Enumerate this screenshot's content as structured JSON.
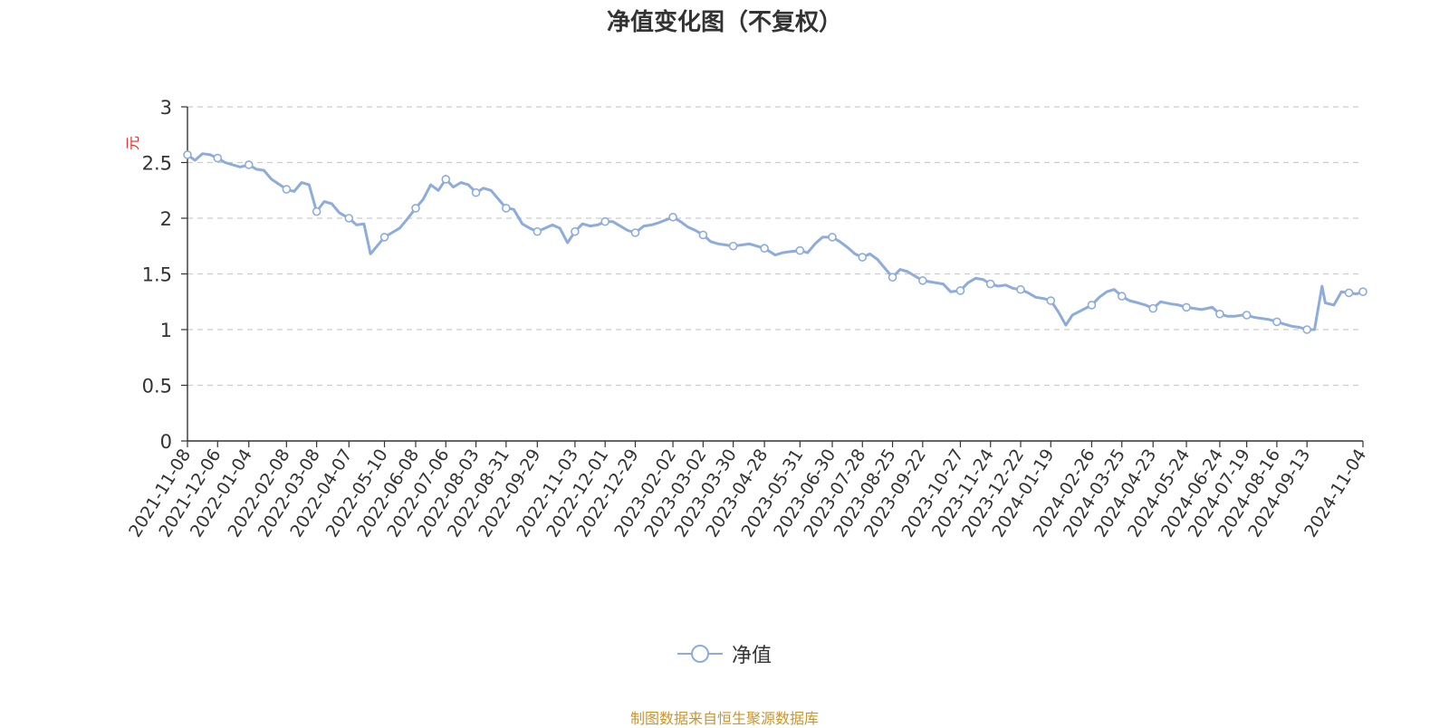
{
  "chart_data": {
    "type": "line",
    "title": "净值变化图（不复权）",
    "ylabel": "元",
    "xlabel": "",
    "ylim": [
      0,
      3
    ],
    "yticks": [
      0,
      0.5,
      1,
      1.5,
      2,
      2.5,
      3
    ],
    "ytick_labels": [
      "0",
      "0.5",
      "1",
      "1.5",
      "2",
      "2.5",
      "3"
    ],
    "grid": true,
    "legend_position": "bottom",
    "x_tick_labels": [
      "2021-11-08",
      "2021-12-06",
      "2022-01-04",
      "2022-02-08",
      "2022-03-08",
      "2022-04-07",
      "2022-05-10",
      "2022-06-08",
      "2022-07-06",
      "2022-08-03",
      "2022-08-31",
      "2022-09-29",
      "2022-11-03",
      "2022-12-01",
      "2022-12-29",
      "2023-02-02",
      "2023-03-02",
      "2023-03-30",
      "2023-04-28",
      "2023-05-31",
      "2023-06-30",
      "2023-07-28",
      "2023-08-25",
      "2023-09-22",
      "2023-10-27",
      "2023-11-24",
      "2023-12-22",
      "2024-01-19",
      "2024-02-26",
      "2024-03-25",
      "2024-04-23",
      "2024-05-24",
      "2024-06-24",
      "2024-07-19",
      "2024-08-16",
      "2024-09-13",
      "2024-11-04"
    ],
    "series": [
      {
        "name": "净值",
        "color": "#8eacdb",
        "x": [
          "2021-11-08",
          "2021-11-15",
          "2021-11-22",
          "2021-11-29",
          "2021-12-06",
          "2021-12-13",
          "2021-12-20",
          "2021-12-27",
          "2022-01-04",
          "2022-01-11",
          "2022-01-18",
          "2022-01-25",
          "2022-02-08",
          "2022-02-15",
          "2022-02-22",
          "2022-03-01",
          "2022-03-08",
          "2022-03-15",
          "2022-03-22",
          "2022-03-29",
          "2022-04-07",
          "2022-04-14",
          "2022-04-21",
          "2022-04-27",
          "2022-05-10",
          "2022-05-17",
          "2022-05-24",
          "2022-05-31",
          "2022-06-08",
          "2022-06-15",
          "2022-06-22",
          "2022-06-29",
          "2022-07-06",
          "2022-07-13",
          "2022-07-20",
          "2022-07-27",
          "2022-08-03",
          "2022-08-10",
          "2022-08-17",
          "2022-08-24",
          "2022-08-31",
          "2022-09-07",
          "2022-09-15",
          "2022-09-22",
          "2022-09-29",
          "2022-10-13",
          "2022-10-20",
          "2022-10-27",
          "2022-11-03",
          "2022-11-10",
          "2022-11-17",
          "2022-11-24",
          "2022-12-01",
          "2022-12-08",
          "2022-12-15",
          "2022-12-22",
          "2022-12-29",
          "2023-01-06",
          "2023-01-13",
          "2023-01-20",
          "2023-02-02",
          "2023-02-09",
          "2023-02-16",
          "2023-02-23",
          "2023-03-02",
          "2023-03-09",
          "2023-03-16",
          "2023-03-23",
          "2023-03-30",
          "2023-04-07",
          "2023-04-14",
          "2023-04-21",
          "2023-04-28",
          "2023-05-08",
          "2023-05-15",
          "2023-05-22",
          "2023-05-31",
          "2023-06-07",
          "2023-06-14",
          "2023-06-21",
          "2023-06-30",
          "2023-07-07",
          "2023-07-14",
          "2023-07-21",
          "2023-07-28",
          "2023-08-04",
          "2023-08-11",
          "2023-08-18",
          "2023-08-25",
          "2023-09-01",
          "2023-09-08",
          "2023-09-15",
          "2023-09-22",
          "2023-10-11",
          "2023-10-18",
          "2023-10-27",
          "2023-11-03",
          "2023-11-10",
          "2023-11-17",
          "2023-11-24",
          "2023-12-01",
          "2023-12-08",
          "2023-12-15",
          "2023-12-22",
          "2023-12-29",
          "2024-01-05",
          "2024-01-12",
          "2024-01-19",
          "2024-01-26",
          "2024-02-02",
          "2024-02-08",
          "2024-02-26",
          "2024-03-04",
          "2024-03-11",
          "2024-03-18",
          "2024-03-25",
          "2024-04-01",
          "2024-04-09",
          "2024-04-16",
          "2024-04-23",
          "2024-04-30",
          "2024-05-10",
          "2024-05-17",
          "2024-05-24",
          "2024-05-31",
          "2024-06-07",
          "2024-06-17",
          "2024-06-24",
          "2024-07-01",
          "2024-07-08",
          "2024-07-15",
          "2024-07-19",
          "2024-07-26",
          "2024-08-02",
          "2024-08-09",
          "2024-08-16",
          "2024-08-23",
          "2024-08-30",
          "2024-09-06",
          "2024-09-13",
          "2024-09-20",
          "2024-09-27",
          "2024-09-30",
          "2024-10-08",
          "2024-10-15",
          "2024-10-22",
          "2024-10-29",
          "2024-11-04"
        ],
        "values": [
          2.57,
          2.52,
          2.58,
          2.57,
          2.54,
          2.5,
          2.48,
          2.46,
          2.48,
          2.44,
          2.43,
          2.35,
          2.26,
          2.24,
          2.32,
          2.3,
          2.06,
          2.15,
          2.13,
          2.05,
          2.0,
          1.94,
          1.95,
          1.68,
          1.83,
          1.87,
          1.91,
          1.99,
          2.09,
          2.17,
          2.3,
          2.25,
          2.35,
          2.28,
          2.32,
          2.3,
          2.23,
          2.27,
          2.25,
          2.17,
          2.09,
          2.08,
          1.95,
          1.91,
          1.88,
          1.94,
          1.91,
          1.78,
          1.88,
          1.95,
          1.93,
          1.94,
          1.97,
          1.97,
          1.93,
          1.89,
          1.87,
          1.93,
          1.94,
          1.96,
          2.01,
          1.97,
          1.92,
          1.89,
          1.85,
          1.79,
          1.77,
          1.76,
          1.75,
          1.76,
          1.77,
          1.75,
          1.73,
          1.67,
          1.69,
          1.7,
          1.71,
          1.69,
          1.77,
          1.83,
          1.83,
          1.79,
          1.74,
          1.68,
          1.65,
          1.68,
          1.63,
          1.55,
          1.47,
          1.54,
          1.52,
          1.48,
          1.44,
          1.41,
          1.34,
          1.35,
          1.42,
          1.46,
          1.45,
          1.41,
          1.39,
          1.4,
          1.37,
          1.36,
          1.33,
          1.29,
          1.28,
          1.26,
          1.16,
          1.04,
          1.13,
          1.22,
          1.29,
          1.34,
          1.36,
          1.3,
          1.26,
          1.24,
          1.22,
          1.19,
          1.25,
          1.23,
          1.22,
          1.2,
          1.19,
          1.18,
          1.2,
          1.14,
          1.12,
          1.12,
          1.13,
          1.13,
          1.11,
          1.1,
          1.09,
          1.07,
          1.05,
          1.03,
          1.02,
          1.0,
          1.0,
          1.39,
          1.24,
          1.22,
          1.34,
          1.33,
          1.32,
          1.34
        ],
        "markers": [
          "2021-11-08",
          "2021-12-06",
          "2022-01-04",
          "2022-02-08",
          "2022-03-08",
          "2022-04-07",
          "2022-05-10",
          "2022-06-08",
          "2022-07-06",
          "2022-08-03",
          "2022-08-31",
          "2022-09-29",
          "2022-11-03",
          "2022-12-01",
          "2022-12-29",
          "2023-02-02",
          "2023-03-02",
          "2023-03-30",
          "2023-04-28",
          "2023-05-31",
          "2023-06-30",
          "2023-07-28",
          "2023-08-25",
          "2023-09-22",
          "2023-10-27",
          "2023-11-24",
          "2023-12-22",
          "2024-01-19",
          "2024-02-26",
          "2024-03-25",
          "2024-04-23",
          "2024-05-24",
          "2024-06-24",
          "2024-07-19",
          "2024-08-16",
          "2024-09-13",
          "2024-10-22",
          "2024-11-04"
        ]
      }
    ]
  },
  "source_note": "制图数据来自恒生聚源数据库",
  "colors": {
    "line": "#8eacdb",
    "ylabel": "#e03030",
    "source": "#c8962e",
    "text": "#333333",
    "grid": "#cccccc"
  }
}
